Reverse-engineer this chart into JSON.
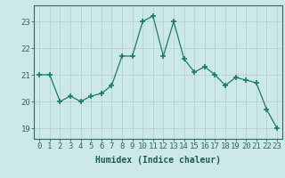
{
  "x": [
    0,
    1,
    2,
    3,
    4,
    5,
    6,
    7,
    8,
    9,
    10,
    11,
    12,
    13,
    14,
    15,
    16,
    17,
    18,
    19,
    20,
    21,
    22,
    23
  ],
  "y": [
    21.0,
    21.0,
    20.0,
    20.2,
    20.0,
    20.2,
    20.3,
    20.6,
    21.7,
    21.7,
    23.0,
    23.2,
    21.7,
    23.0,
    21.6,
    21.1,
    21.3,
    21.0,
    20.6,
    20.9,
    20.8,
    20.7,
    19.7,
    19.0
  ],
  "line_color": "#1a7a6e",
  "marker": "+",
  "marker_size": 4,
  "marker_linewidth": 1.2,
  "bg_color": "#cce9e7",
  "grid_color": "#b0cccc",
  "axis_color": "#336666",
  "xlabel": "Humidex (Indice chaleur)",
  "xlabel_fontsize": 7,
  "xlabel_color": "#1a5a5a",
  "yticks": [
    19,
    20,
    21,
    22,
    23
  ],
  "xticks": [
    0,
    1,
    2,
    3,
    4,
    5,
    6,
    7,
    8,
    9,
    10,
    11,
    12,
    13,
    14,
    15,
    16,
    17,
    18,
    19,
    20,
    21,
    22,
    23
  ],
  "ylim": [
    18.6,
    23.6
  ],
  "xlim": [
    -0.5,
    23.5
  ],
  "tick_fontsize": 6.5,
  "line_width": 0.9
}
